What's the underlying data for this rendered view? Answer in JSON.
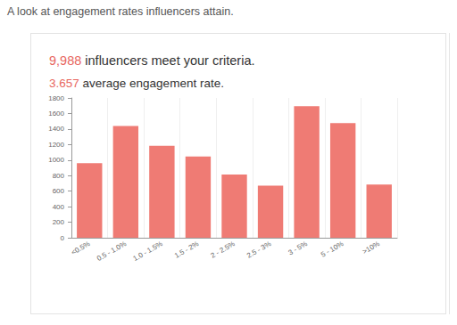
{
  "header": {
    "title": "A look at engagement rates influencers attain."
  },
  "stats": [
    {
      "value": "9,988",
      "text": "influencers meet your criteria."
    },
    {
      "value": "3.657",
      "text": "average engagement rate."
    }
  ],
  "chart_data": {
    "type": "bar",
    "categories": [
      "<0.5%",
      "0.5 - 1.0%",
      "1.0 - 1.5%",
      "1.5 - 2%",
      "2 - 2.5%",
      "2.5 - 3%",
      "3 - 5%",
      "5 - 10%",
      ">10%"
    ],
    "values": [
      960,
      1440,
      1185,
      1045,
      815,
      670,
      1695,
      1475,
      685
    ],
    "color": "#ef7b74",
    "ylim": [
      0,
      1800
    ],
    "yticks": [
      0,
      200,
      400,
      600,
      800,
      1000,
      1200,
      1400,
      1600,
      1800
    ],
    "grid": true
  }
}
